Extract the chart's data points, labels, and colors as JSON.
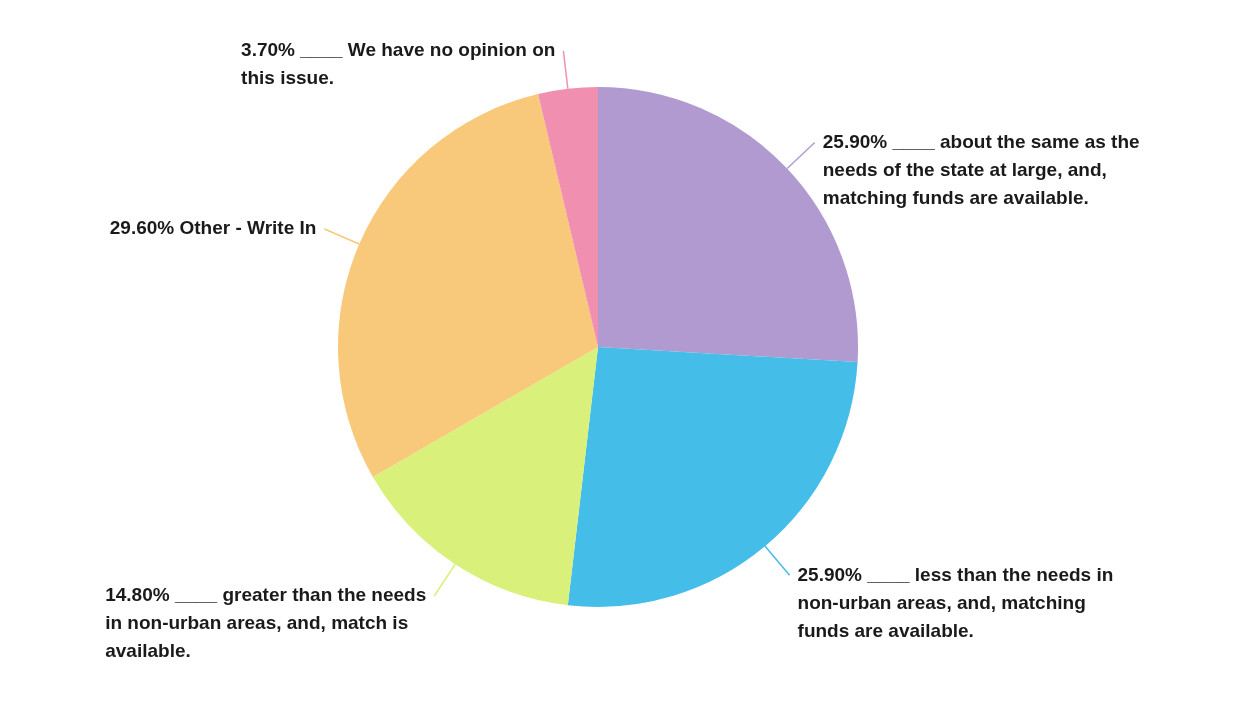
{
  "chart_data": {
    "type": "pie",
    "categories": [
      "____ about the same as the needs of the state at large, and, matching funds are available.",
      "____ less than the needs in non-urban areas, and, matching funds are available.",
      "____ greater than the needs in non-urban areas, and, match is available.",
      "Other - Write In",
      "____ We have no opinion on this issue."
    ],
    "values": [
      25.9,
      25.9,
      14.8,
      29.6,
      3.7
    ],
    "value_labels": [
      "25.90%",
      "25.90%",
      "14.80%",
      "29.60%",
      "3.70%"
    ],
    "colors": [
      "#b09ad0",
      "#44bde8",
      "#d9f07a",
      "#f8c97a",
      "#f08fb0"
    ],
    "legend": false
  }
}
